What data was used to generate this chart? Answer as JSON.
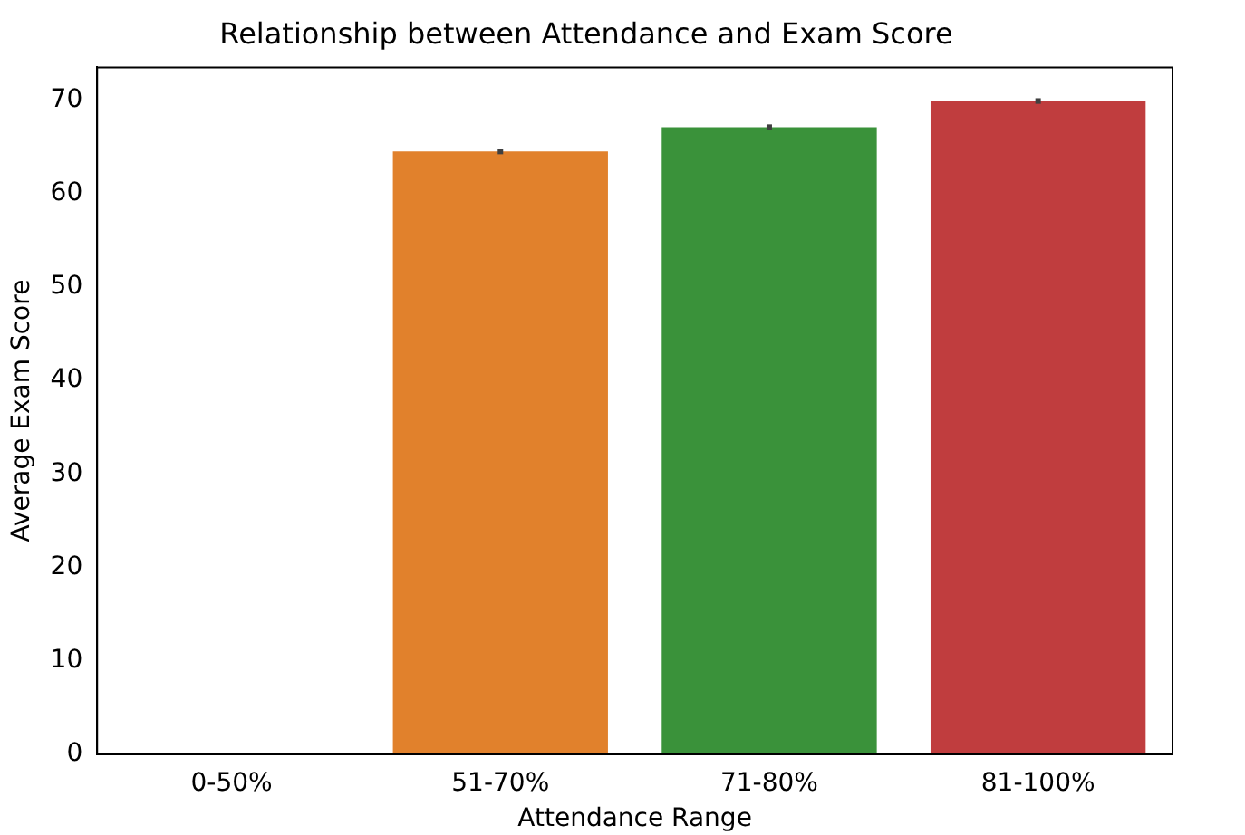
{
  "chart_data": {
    "type": "bar",
    "title": "Relationship between Attendance and Exam Score",
    "xlabel": "Attendance Range",
    "ylabel": "Average Exam Score",
    "categories": [
      "0-50%",
      "51-70%",
      "71-80%",
      "81-100%"
    ],
    "values": [
      null,
      64.5,
      67.1,
      69.9
    ],
    "colors": [
      "#3a75b0",
      "#e1812c",
      "#3a923a",
      "#c03d3e"
    ],
    "errors": [
      null,
      0.3,
      0.3,
      0.3
    ],
    "ylim": [
      0,
      73.5
    ],
    "yticks": [
      0,
      10,
      20,
      30,
      40,
      50,
      60,
      70
    ],
    "grid": false,
    "legend": false
  }
}
